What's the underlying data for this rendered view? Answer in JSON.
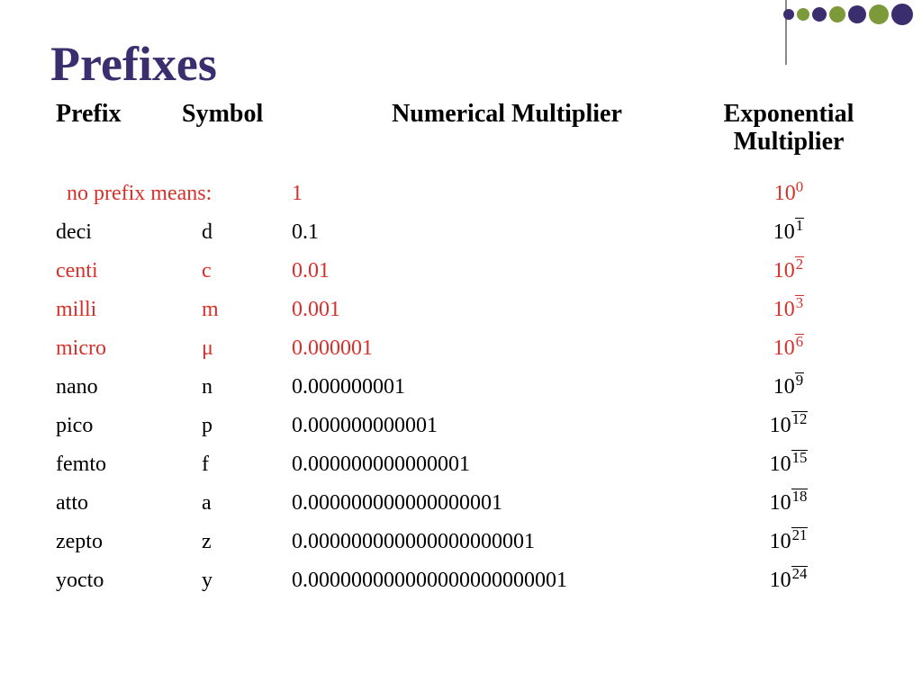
{
  "decor": {
    "dots": [
      {
        "size": 12,
        "color": "#3b2e6e"
      },
      {
        "size": 14,
        "color": "#7d9a3a"
      },
      {
        "size": 16,
        "color": "#3b2e6e"
      },
      {
        "size": 18,
        "color": "#7d9a3a"
      },
      {
        "size": 20,
        "color": "#3b2e6e"
      },
      {
        "size": 22,
        "color": "#7d9a3a"
      },
      {
        "size": 24,
        "color": "#3b2e6e"
      }
    ],
    "line_color": "#888888"
  },
  "title": "Prefixes",
  "title_color": "#3b2e6e",
  "headers": {
    "prefix": "Prefix",
    "symbol": "Symbol",
    "numerical": "Numerical Multiplier",
    "exponential": "Exponential Multiplier"
  },
  "no_prefix": {
    "label": "no prefix means:",
    "numerical": "1",
    "exp_base": "10",
    "exp_power": "0",
    "color": "#d8302a"
  },
  "rows": [
    {
      "prefix": "deci",
      "symbol": "d",
      "numerical": "0.1",
      "exp_base": "10",
      "exp_power": "1",
      "color": "#000000"
    },
    {
      "prefix": "centi",
      "symbol": "c",
      "numerical": "0.01",
      "exp_base": "10",
      "exp_power": "2",
      "color": "#d8302a"
    },
    {
      "prefix": "milli",
      "symbol": "m",
      "numerical": "0.001",
      "exp_base": "10",
      "exp_power": "3",
      "color": "#d8302a"
    },
    {
      "prefix": "micro",
      "symbol": "μ",
      "numerical": "0.000001",
      "exp_base": "10",
      "exp_power": "6",
      "color": "#d8302a"
    },
    {
      "prefix": "nano",
      "symbol": "n",
      "numerical": "0.000000001",
      "exp_base": "10",
      "exp_power": "9",
      "color": "#000000"
    },
    {
      "prefix": "pico",
      "symbol": "p",
      "numerical": "0.000000000001",
      "exp_base": "10",
      "exp_power": "12",
      "color": "#000000"
    },
    {
      "prefix": "femto",
      "symbol": "f",
      "numerical": "0.000000000000001",
      "exp_base": "10",
      "exp_power": "15",
      "color": "#000000"
    },
    {
      "prefix": "atto",
      "symbol": "a",
      "numerical": "0.000000000000000001",
      "exp_base": "10",
      "exp_power": "18",
      "color": "#000000"
    },
    {
      "prefix": "zepto",
      "symbol": "z",
      "numerical": "0.000000000000000000001",
      "exp_base": "10",
      "exp_power": "21",
      "color": "#000000"
    },
    {
      "prefix": "yocto",
      "symbol": "y",
      "numerical": "0.000000000000000000000001",
      "exp_base": "10",
      "exp_power": "24",
      "color": "#000000"
    }
  ]
}
